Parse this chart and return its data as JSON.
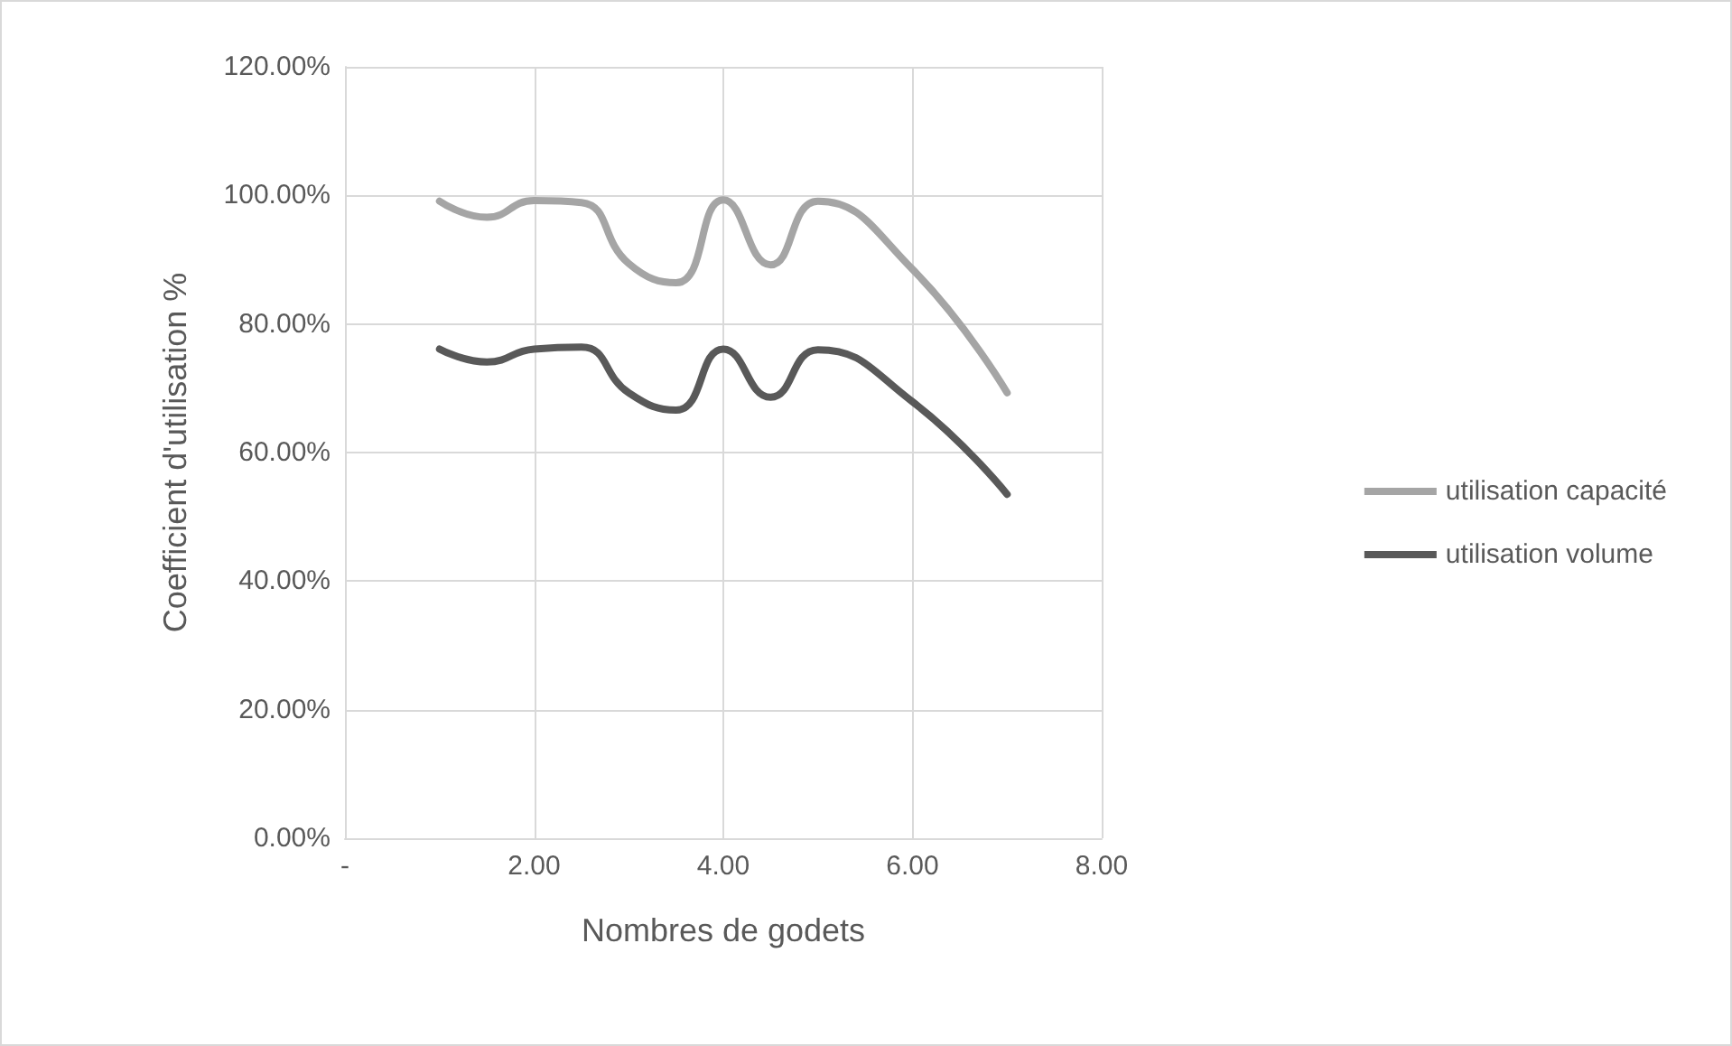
{
  "chart_data": {
    "type": "line",
    "xlabel": "Nombres de godets",
    "ylabel": "Coefficient d'utilisation %",
    "series": [
      {
        "name": "utilisation capacité",
        "color": "#a5a5a5",
        "x": [
          1,
          1.5,
          2,
          2.5,
          3,
          3.5,
          4,
          4.5,
          5,
          6,
          7
        ],
        "values": [
          99.1,
          96.6,
          99.2,
          98.9,
          89.4,
          86.4,
          99.3,
          89.2,
          99.1,
          88.5,
          69.3
        ]
      },
      {
        "name": "utilisation volume",
        "color": "#595959",
        "x": [
          1,
          1.5,
          2,
          2.5,
          3,
          3.5,
          4,
          4.5,
          5,
          6,
          7
        ],
        "values": [
          76.1,
          74.1,
          76.1,
          76.4,
          69.3,
          66.6,
          76.1,
          68.6,
          76.0,
          67.9,
          53.5
        ]
      }
    ],
    "xlim": [
      0,
      8
    ],
    "xticks": [
      {
        "value": 0,
        "label": "-"
      },
      {
        "value": 2,
        "label": "2.00"
      },
      {
        "value": 4,
        "label": "4.00"
      },
      {
        "value": 6,
        "label": "6.00"
      },
      {
        "value": 8,
        "label": "8.00"
      }
    ],
    "ylim": [
      0,
      120
    ],
    "yticks": [
      {
        "value": 0,
        "label": "0.00%"
      },
      {
        "value": 20,
        "label": "20.00%"
      },
      {
        "value": 40,
        "label": "40.00%"
      },
      {
        "value": 60,
        "label": "60.00%"
      },
      {
        "value": 80,
        "label": "80.00%"
      },
      {
        "value": 100,
        "label": "100.00%"
      },
      {
        "value": 120,
        "label": "120.00%"
      }
    ],
    "grid": true,
    "legend": "right",
    "marker": "none",
    "line_style": "solid"
  }
}
